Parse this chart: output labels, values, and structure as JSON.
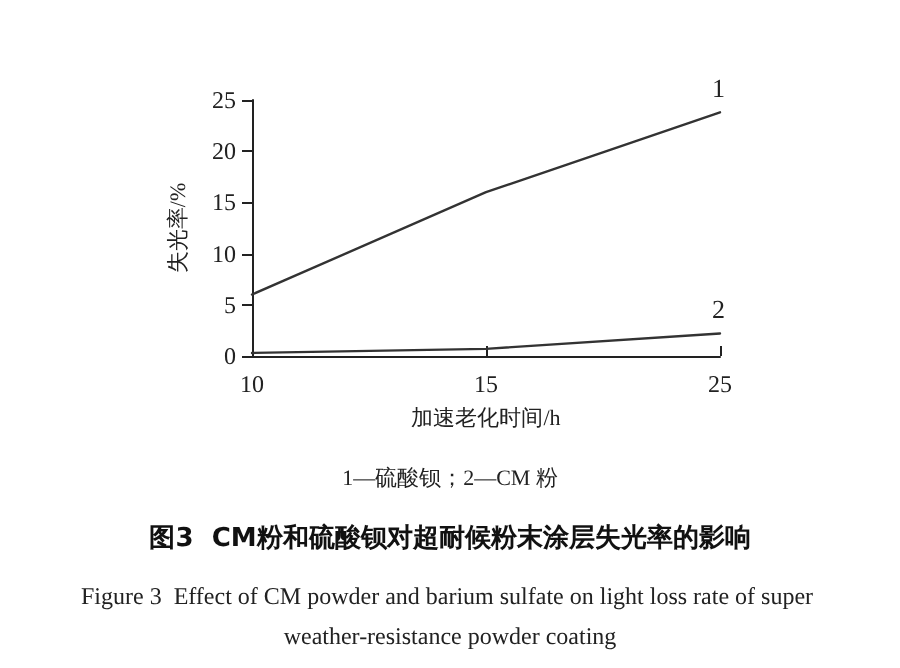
{
  "chart_data": {
    "type": "line",
    "title": "图3  CM粉和硫酸钡对超耐候粉末涂层失光率的影响",
    "subtitle": "Figure 3  Effect of CM powder and barium sulfate on light loss rate of super weather-resistance powder coating",
    "xlabel": "加速老化时间/h",
    "ylabel": "失光率/%",
    "categories": [
      "10",
      "15",
      "25"
    ],
    "series": [
      {
        "name": "1",
        "color": "#333333",
        "values": [
          6,
          16,
          23.8
        ]
      },
      {
        "name": "2",
        "color": "#333333",
        "values": [
          0.3,
          0.7,
          2.2
        ]
      }
    ],
    "ylim": [
      0,
      25
    ],
    "yticks": [
      0,
      5,
      10,
      15,
      20,
      25
    ],
    "grid": false,
    "legend": false,
    "marker": "none",
    "line_style": "solid",
    "annotations": [
      "1—硫酸钡；2—CM 粉"
    ]
  }
}
